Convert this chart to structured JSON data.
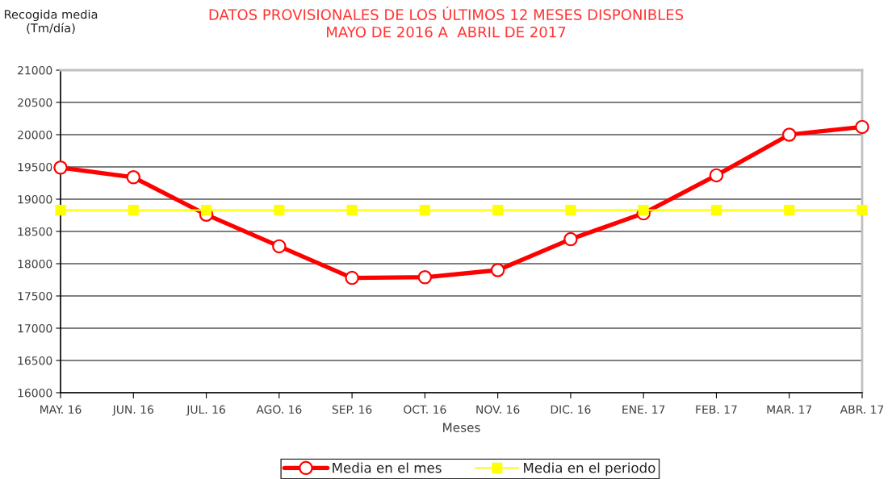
{
  "chart_data": {
    "type": "line",
    "title": "DATOS PROVISIONALES DE LOS ÚLTIMOS 12 MESES DISPONIBLES\nMAYO DE 2016 A  ABRIL DE 2017",
    "xlabel": "Meses",
    "ylabel": "Recogida media\n(Tm/día)",
    "categories": [
      "MAY. 16",
      "JUN. 16",
      "JUL. 16",
      "AGO. 16",
      "SEP. 16",
      "OCT. 16",
      "NOV. 16",
      "DIC. 16",
      "ENE. 17",
      "FEB. 17",
      "MAR. 17",
      "ABR. 17"
    ],
    "series": [
      {
        "name": "Media en el mes",
        "color": "#ff0000",
        "marker": "circle",
        "values": [
          19490,
          19340,
          18760,
          18270,
          17780,
          17790,
          17900,
          18380,
          18780,
          19370,
          20000,
          20120
        ]
      },
      {
        "name": "Media en el periodo",
        "color": "#ffff00",
        "marker": "square",
        "values": [
          18830,
          18830,
          18830,
          18830,
          18830,
          18830,
          18830,
          18830,
          18830,
          18830,
          18830,
          18830
        ]
      }
    ],
    "ylim": [
      16000,
      21000
    ],
    "yticks": [
      16000,
      16500,
      17000,
      17500,
      18000,
      18500,
      19000,
      19500,
      20000,
      20500,
      21000
    ],
    "grid": "y",
    "legend": "bottom",
    "line_style": "solid"
  }
}
